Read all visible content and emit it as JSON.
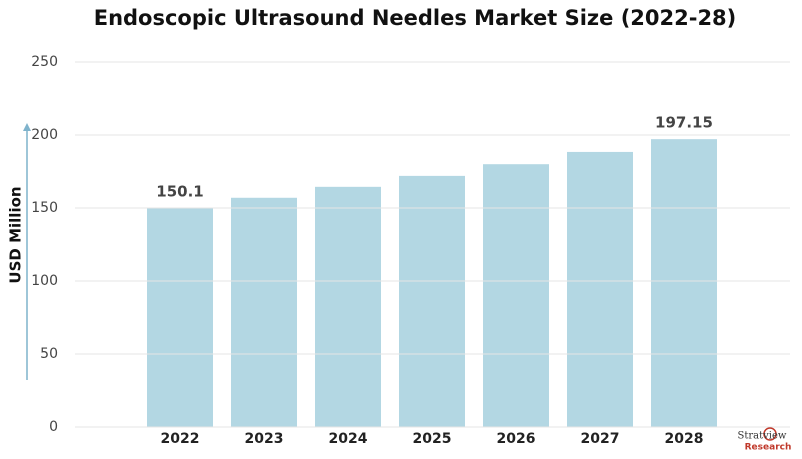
{
  "chart_data": {
    "type": "bar",
    "title": "Endoscopic Ultrasound Needles Market Size (2022-28)",
    "y_label": "USD Million",
    "categories": [
      "2022",
      "2023",
      "2024",
      "2025",
      "2026",
      "2027",
      "2028"
    ],
    "values": [
      150.1,
      157,
      164.5,
      172,
      180,
      188.4,
      197.15
    ],
    "value_labels": [
      "150.1",
      null,
      null,
      null,
      null,
      null,
      "197.15"
    ],
    "color": "#b3d7e3",
    "ylim": [
      0,
      250
    ],
    "yticks": [
      0,
      50,
      100,
      150,
      200,
      250
    ],
    "grid": true
  },
  "logo": {
    "name": "Stratview",
    "sub": "Research"
  }
}
